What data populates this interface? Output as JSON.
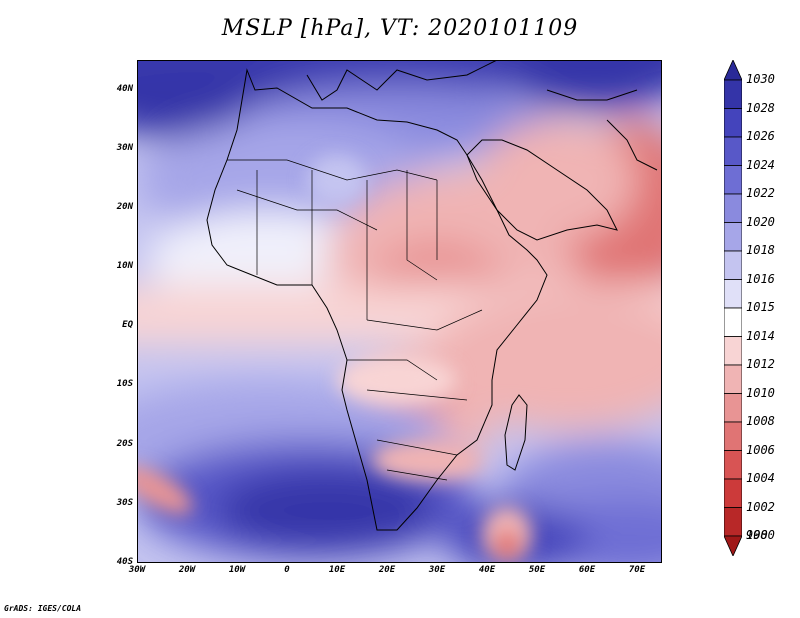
{
  "title": "MSLP [hPa], VT: 2020101109",
  "credit": "GrADS: IGES/COLA",
  "map": {
    "lon_range": [
      -30,
      75
    ],
    "lat_range": [
      -40,
      45
    ],
    "lat_ticks": [
      {
        "lat": 40,
        "label": "40N"
      },
      {
        "lat": 30,
        "label": "30N"
      },
      {
        "lat": 20,
        "label": "20N"
      },
      {
        "lat": 10,
        "label": "10N"
      },
      {
        "lat": 0,
        "label": "EQ"
      },
      {
        "lat": -10,
        "label": "10S"
      },
      {
        "lat": -20,
        "label": "20S"
      },
      {
        "lat": -30,
        "label": "30S"
      },
      {
        "lat": -40,
        "label": "40S"
      }
    ],
    "lon_ticks": [
      {
        "lon": -30,
        "label": "30W"
      },
      {
        "lon": -20,
        "label": "20W"
      },
      {
        "lon": -10,
        "label": "10W"
      },
      {
        "lon": 0,
        "label": "0"
      },
      {
        "lon": 10,
        "label": "10E"
      },
      {
        "lon": 20,
        "label": "20E"
      },
      {
        "lon": 30,
        "label": "30E"
      },
      {
        "lon": 40,
        "label": "40E"
      },
      {
        "lon": 50,
        "label": "50E"
      },
      {
        "lon": 60,
        "label": "60E"
      },
      {
        "lon": 70,
        "label": "70E"
      }
    ]
  },
  "colorbar": {
    "levels": [
      "1030",
      "1028",
      "1026",
      "1024",
      "1022",
      "1020",
      "1018",
      "1016",
      "1015",
      "1014",
      "1012",
      "1010",
      "1008",
      "1006",
      "1004",
      "1002",
      "1000",
      "998"
    ],
    "colors": [
      "#2a2a98",
      "#3434a8",
      "#4444bc",
      "#5858c8",
      "#6e6ed4",
      "#8a8ade",
      "#a6a6e8",
      "#c4c4f0",
      "#e0e0f8",
      "#ffffff",
      "#f8d4d4",
      "#f0b4b4",
      "#e89494",
      "#e07474",
      "#d85454",
      "#cc3a3a",
      "#b82828",
      "#a01818"
    ]
  }
}
